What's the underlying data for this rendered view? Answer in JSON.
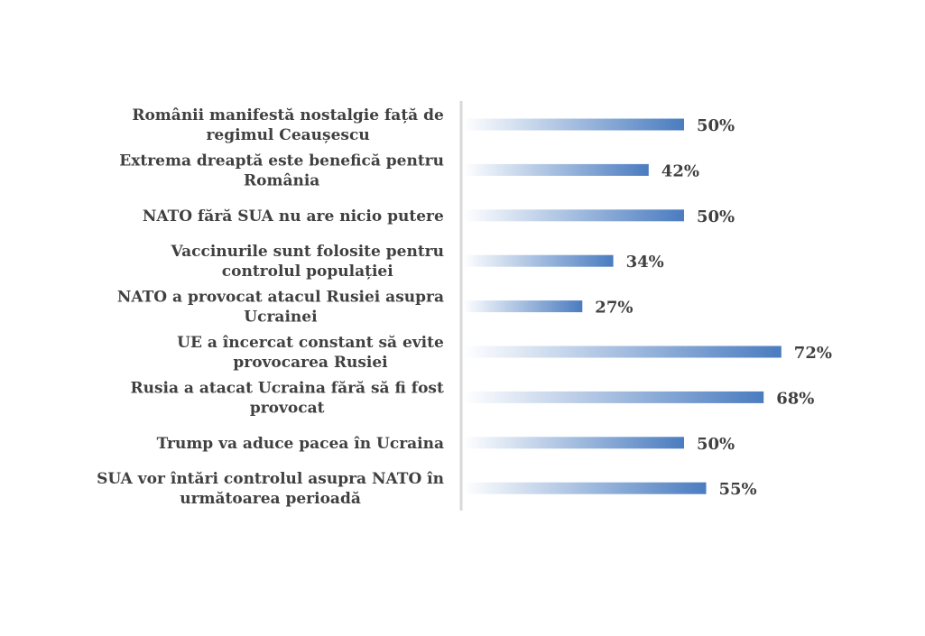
{
  "chart_data": {
    "type": "bar",
    "orientation": "horizontal",
    "categories": [
      [
        "Românii manifestă nostalgie față de",
        "regimul Ceaușescu"
      ],
      [
        "Extrema dreaptă este benefică pentru",
        "România"
      ],
      [
        "NATO fără SUA nu are nicio putere"
      ],
      [
        "Vaccinurile sunt folosite pentru",
        "controlul populației"
      ],
      [
        "NATO a provocat atacul Rusiei asupra",
        "Ucrainei"
      ],
      [
        "UE a încercat constant să evite",
        "provocarea Rusiei"
      ],
      [
        "Rusia a atacat Ucraina fără să fi fost",
        "provocat"
      ],
      [
        "Trump va aduce pacea în Ucraina"
      ],
      [
        "SUA vor întări controlul asupra NATO în",
        "următoarea perioadă"
      ]
    ],
    "values": [
      50,
      42,
      50,
      34,
      27,
      72,
      68,
      50,
      55
    ],
    "value_labels": [
      "50%",
      "42%",
      "50%",
      "34%",
      "27%",
      "72%",
      "68%",
      "50%",
      "55%"
    ],
    "xlim": [
      0,
      100
    ],
    "grid": false,
    "legend": "none",
    "colors": {
      "bar_start": "#ffffff",
      "bar_end": "#4a7cc0",
      "axis": "#d9d9d9",
      "text": "#404040"
    }
  }
}
